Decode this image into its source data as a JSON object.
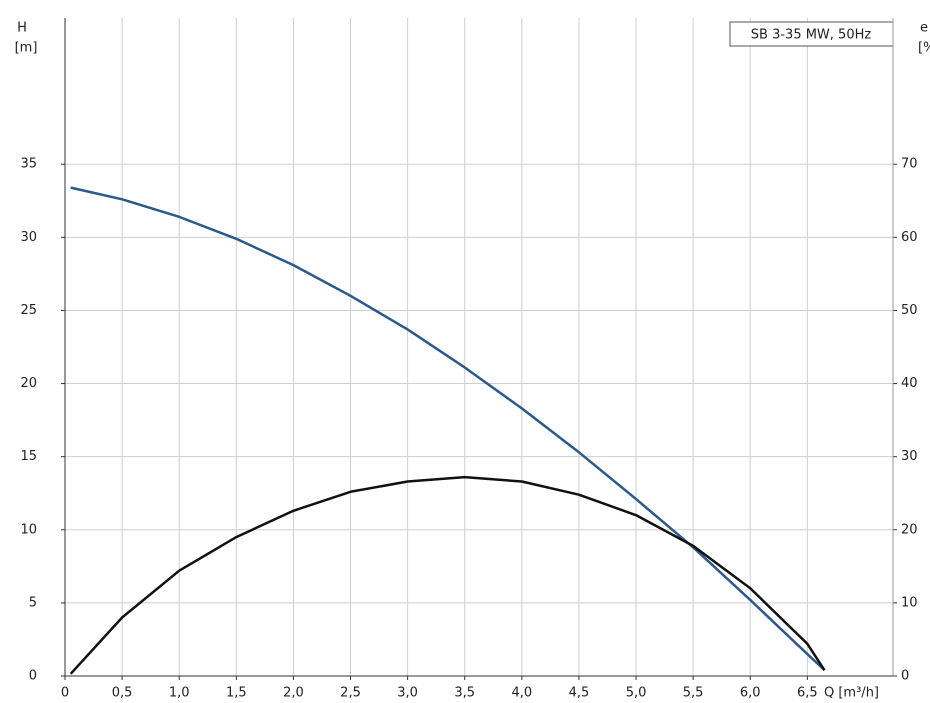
{
  "chart_data": {
    "type": "line",
    "title": "SB 3-35 MW, 50Hz",
    "x_label": "Q [m³/h]",
    "y_label": "H",
    "y_unit": "[m]",
    "y2_label": "e",
    "y2_unit": "[%]",
    "x": [
      0.05,
      0.5,
      1.0,
      1.5,
      2.0,
      2.5,
      3.0,
      3.5,
      4.0,
      4.5,
      5.0,
      5.5,
      6.0,
      6.5,
      6.65
    ],
    "series": [
      {
        "name": "H",
        "color": "#2a5a8c",
        "values": [
          33.4,
          32.6,
          31.4,
          29.9,
          28.1,
          26.0,
          23.7,
          21.1,
          18.3,
          15.3,
          12.1,
          8.8,
          5.2,
          1.5,
          0.4
        ]
      },
      {
        "name": "e",
        "color": "#111111",
        "axis": "y2",
        "values": [
          0.3,
          8,
          14.4,
          19,
          22.6,
          25.2,
          26.6,
          27.2,
          26.6,
          24.8,
          22,
          17.8,
          12,
          4.4,
          0.8
        ]
      }
    ],
    "xlim": [
      0,
      7.25
    ],
    "xticks": [
      0,
      {
        "value": 0.5,
        "label": "0,5"
      },
      {
        "value": 1,
        "label": "1,0"
      },
      {
        "value": 1.5,
        "label": "1,5"
      },
      {
        "value": 2,
        "label": "2,0"
      },
      {
        "value": 2.5,
        "label": "2,5"
      },
      {
        "value": 3,
        "label": "3,0"
      },
      {
        "value": 3.5,
        "label": "3,5"
      },
      {
        "value": 4,
        "label": "4,0"
      },
      {
        "value": 4.5,
        "label": "4,5"
      },
      {
        "value": 5,
        "label": "5,0"
      },
      {
        "value": 5.5,
        "label": "5,5"
      },
      {
        "value": 6,
        "label": "6,0"
      },
      {
        "value": 6.5,
        "label": "6,5"
      }
    ],
    "ylim": [
      0,
      45
    ],
    "yticks": [
      0,
      5,
      10,
      15,
      20,
      25,
      30,
      35
    ],
    "y2lim": [
      0,
      90
    ],
    "y2ticks": [
      0,
      10,
      20,
      30,
      40,
      50,
      60,
      70
    ],
    "grid": true
  }
}
